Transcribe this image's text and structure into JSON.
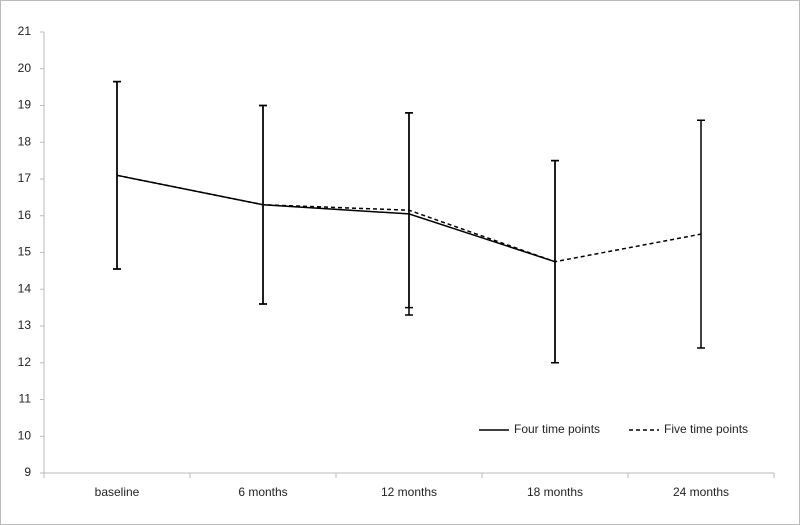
{
  "chart_data": {
    "type": "line",
    "categories": [
      "baseline",
      "6 months",
      "12 months",
      "18 months",
      "24 months"
    ],
    "series": [
      {
        "name": "Four time points",
        "color": "#000000",
        "dash": false,
        "values": [
          17.1,
          16.3,
          16.05,
          14.75,
          null
        ],
        "errors": [
          2.55,
          2.7,
          2.75,
          2.75,
          null
        ]
      },
      {
        "name": "Five time points",
        "color": "#000000",
        "dash": true,
        "values": [
          17.1,
          16.3,
          16.15,
          14.75,
          15.5
        ],
        "errors": [
          2.55,
          2.7,
          2.65,
          2.75,
          3.1
        ]
      }
    ],
    "ylim": [
      9,
      21
    ],
    "yticks": [
      9,
      10,
      11,
      12,
      13,
      14,
      15,
      16,
      17,
      18,
      19,
      20,
      21
    ],
    "grid": false,
    "legend": "lower right"
  }
}
